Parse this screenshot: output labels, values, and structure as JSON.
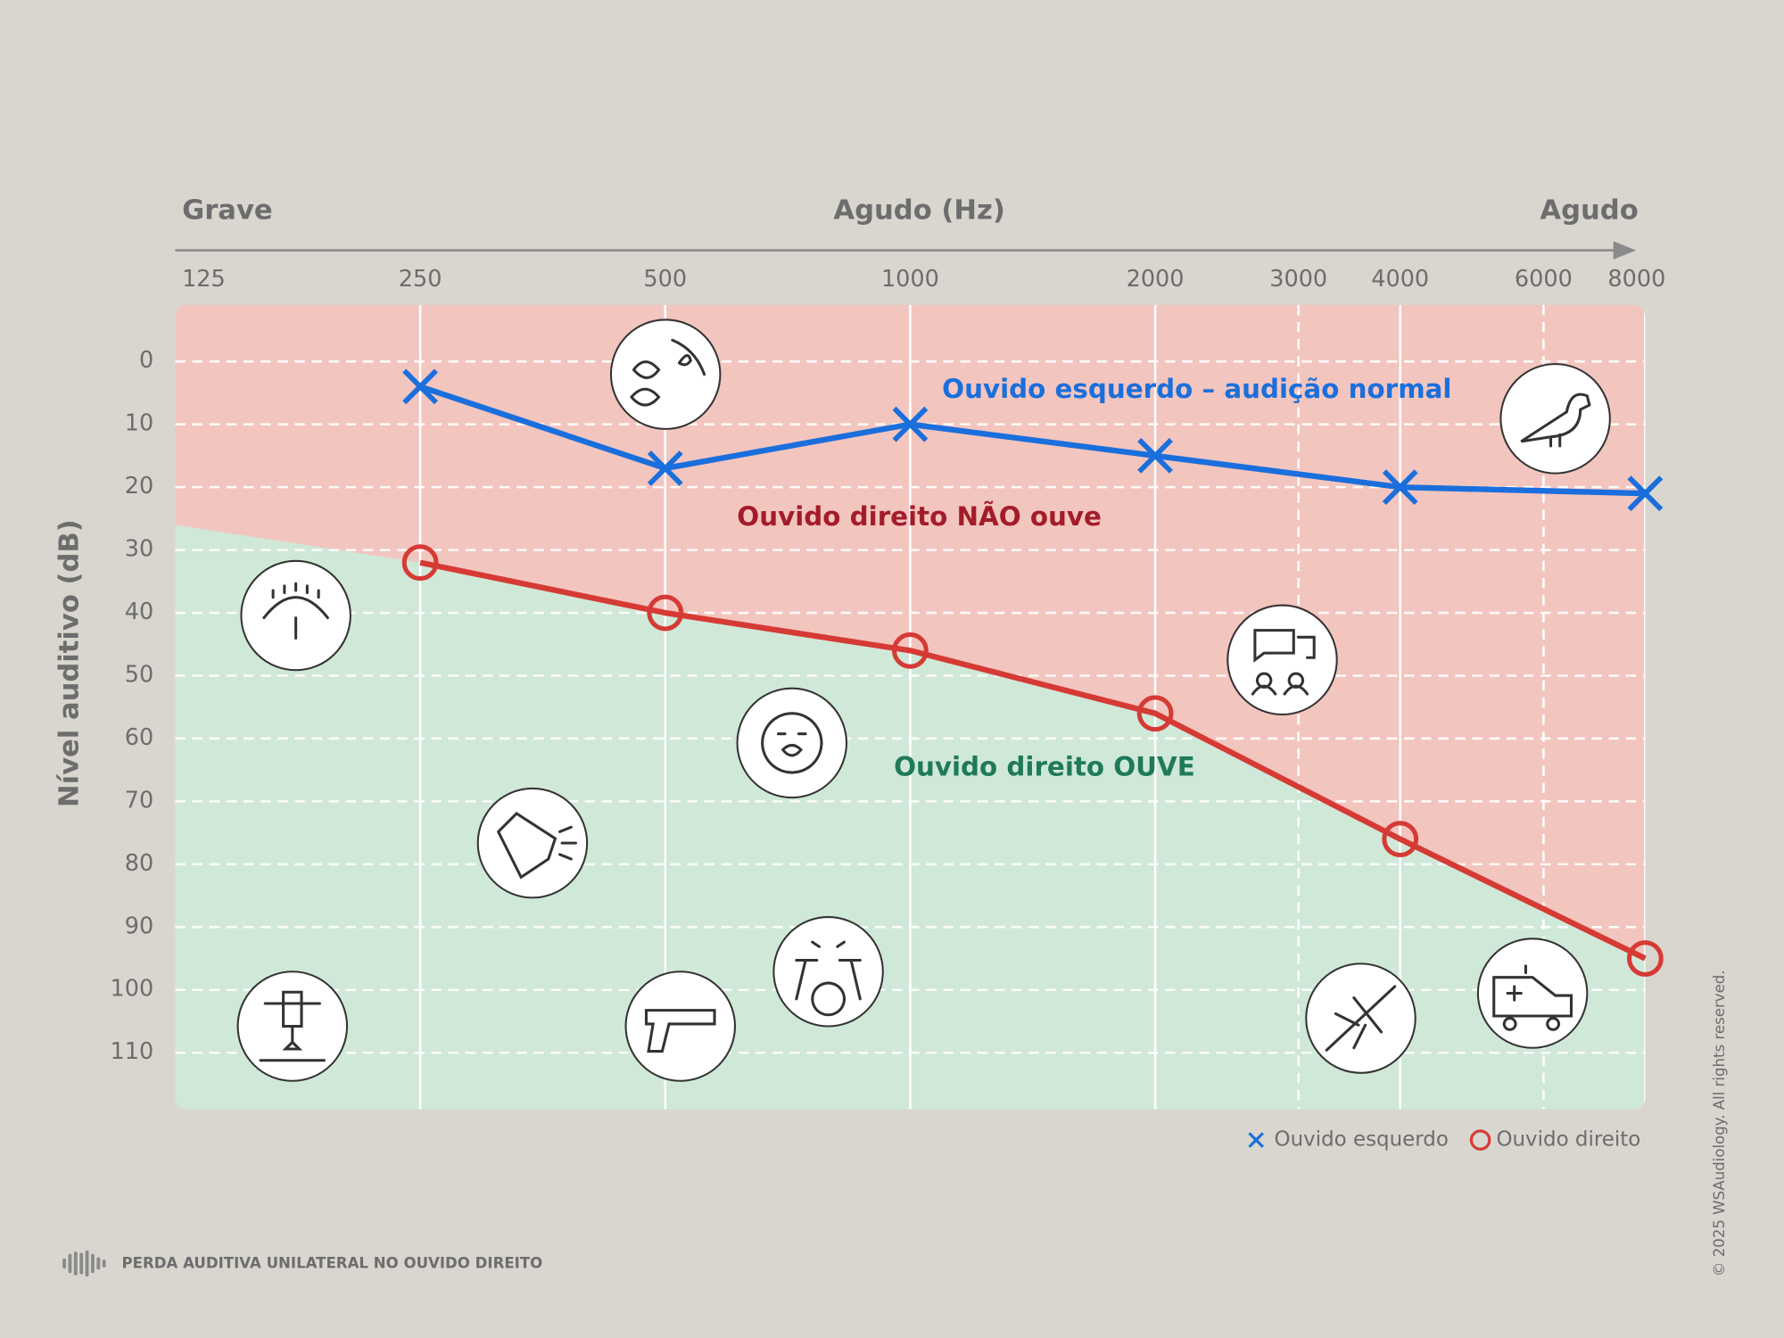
{
  "chart_data": {
    "type": "line",
    "axis_top_labels": {
      "left": "Grave",
      "center": "Agudo (Hz)",
      "right": "Agudo"
    },
    "y_label": "Nível auditivo (dB)",
    "x": [
      250,
      500,
      1000,
      2000,
      4000,
      8000
    ],
    "series": [
      {
        "name": "Ouvido esquerdo",
        "color": "#1a6fdc",
        "marker": "x",
        "values": [
          4,
          17,
          10,
          15,
          20,
          21
        ]
      },
      {
        "name": "Ouvido direito",
        "color": "#d63a35",
        "marker": "o",
        "values": [
          32,
          40,
          46,
          56,
          76,
          95
        ]
      }
    ],
    "xlim": [
      125,
      8000
    ],
    "x_log_scale": true,
    "xticks": [
      125,
      250,
      500,
      1000,
      2000,
      3000,
      4000,
      6000,
      8000
    ],
    "ylim": [
      -9,
      119
    ],
    "y_inverted": true,
    "yticks": [
      0,
      10,
      20,
      30,
      40,
      50,
      60,
      70,
      80,
      90,
      100,
      110
    ],
    "grid": true,
    "background_color": "#f3c5bf",
    "audible_region": {
      "color": "#d0e8d8",
      "start_value": 26
    },
    "annotations": [
      {
        "text": "Ouvido esquerdo – audição normal",
        "color": "#1a6fdc"
      },
      {
        "text": "Ouvido direito NÃO ouve",
        "color": "#a31c2a"
      },
      {
        "text": "Ouvido direito OUVE",
        "color": "#1f7a5a"
      }
    ],
    "legend": "bottom-right",
    "footer": "PERDA AUDITIVA UNILATERAL NO OUVIDO DIREITO",
    "copyright": "© 2025 WSAudiology. All rights reserved."
  }
}
